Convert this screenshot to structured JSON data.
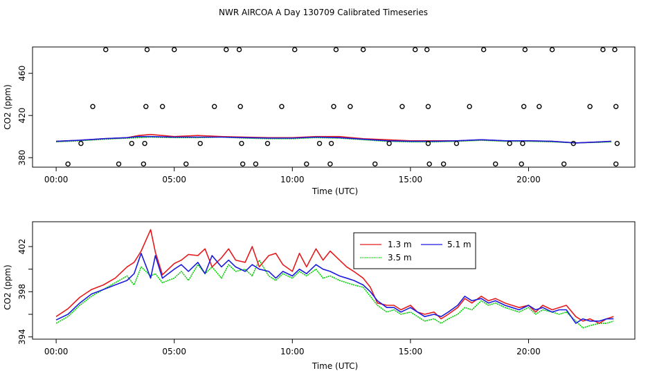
{
  "figure": {
    "title": "NWR AIRCOA A  Day 130709  Calibrated Timeseries"
  },
  "colors": {
    "series_1_3m": "#e41a1c",
    "series_3_5m": "#00cc00",
    "series_5_1m": "#1a1adf",
    "marker": "#000000"
  },
  "chart_data": [
    {
      "type": "line",
      "title": "",
      "xlabel": "Time (UTC)",
      "ylabel": "CO2 (ppm)",
      "xlim": [
        -1.0,
        24.5
      ],
      "ylim": [
        371,
        485
      ],
      "x_ticks": [
        0,
        5,
        10,
        15,
        20
      ],
      "x_tick_labels": [
        "00:00",
        "05:00",
        "10:00",
        "15:00",
        "20:00"
      ],
      "y_ticks": [
        380,
        420,
        460
      ],
      "y_tick_labels": [
        "380",
        "420",
        "460"
      ],
      "series": [
        {
          "name": "1.3 m",
          "color_key": "series_1_3m",
          "x": [
            0,
            1,
            2,
            3,
            3.5,
            4,
            5,
            6,
            7,
            8,
            9,
            10,
            11,
            12,
            13,
            14,
            15,
            16,
            17,
            18,
            19,
            20,
            21,
            22,
            23,
            23.5
          ],
          "values": [
            395.5,
            396.5,
            398,
            399,
            401,
            402,
            400,
            401,
            400,
            399.5,
            399,
            399,
            400,
            400,
            398,
            397,
            396,
            396,
            396,
            397,
            396,
            396,
            395.5,
            394,
            395,
            395.5
          ]
        },
        {
          "name": "3.5 m",
          "color_key": "series_3_5m",
          "x": [
            0,
            1,
            2,
            3,
            3.5,
            4,
            5,
            6,
            7,
            8,
            9,
            10,
            11,
            12,
            13,
            14,
            15,
            16,
            17,
            18,
            19,
            20,
            21,
            22,
            23,
            23.5
          ],
          "values": [
            395,
            396,
            397.5,
            398.5,
            399,
            399.5,
            399,
            399,
            399.5,
            398.5,
            398,
            398,
            399,
            398.5,
            397,
            395.5,
            395,
            395,
            395.5,
            396.5,
            395.5,
            395.5,
            395,
            394,
            394.5,
            395
          ]
        },
        {
          "name": "5.1 m",
          "color_key": "series_5_1m",
          "x": [
            0,
            1,
            2,
            3,
            3.5,
            4,
            5,
            6,
            7,
            8,
            9,
            10,
            11,
            12,
            13,
            14,
            15,
            16,
            17,
            18,
            19,
            20,
            21,
            22,
            23,
            23.5
          ],
          "values": [
            395.5,
            396.5,
            398,
            399,
            400,
            400,
            399.5,
            399.5,
            399.5,
            399,
            398.5,
            398.5,
            399.5,
            399,
            397.5,
            396,
            395.5,
            395.5,
            396,
            397,
            396,
            396,
            395.5,
            394,
            395,
            395.5
          ]
        }
      ],
      "markers": [
        {
          "x": 0.5,
          "y": 374
        },
        {
          "x": 2.65,
          "y": 374
        },
        {
          "x": 3.7,
          "y": 374
        },
        {
          "x": 5.5,
          "y": 374
        },
        {
          "x": 7.9,
          "y": 374
        },
        {
          "x": 8.45,
          "y": 374
        },
        {
          "x": 10.6,
          "y": 374
        },
        {
          "x": 11.6,
          "y": 374
        },
        {
          "x": 13.5,
          "y": 374
        },
        {
          "x": 15.8,
          "y": 374
        },
        {
          "x": 16.4,
          "y": 374
        },
        {
          "x": 18.6,
          "y": 374
        },
        {
          "x": 19.7,
          "y": 374
        },
        {
          "x": 21.5,
          "y": 374
        },
        {
          "x": 23.7,
          "y": 374
        },
        {
          "x": 1.05,
          "y": 393.5
        },
        {
          "x": 3.2,
          "y": 393.5
        },
        {
          "x": 3.75,
          "y": 393.5
        },
        {
          "x": 6.1,
          "y": 393.5
        },
        {
          "x": 7.85,
          "y": 393.5
        },
        {
          "x": 8.95,
          "y": 393.5
        },
        {
          "x": 11.15,
          "y": 393.5
        },
        {
          "x": 11.65,
          "y": 393.5
        },
        {
          "x": 14.1,
          "y": 393.5
        },
        {
          "x": 15.75,
          "y": 393.5
        },
        {
          "x": 16.95,
          "y": 393.5
        },
        {
          "x": 19.2,
          "y": 393.5
        },
        {
          "x": 19.75,
          "y": 393.5
        },
        {
          "x": 21.9,
          "y": 393.5
        },
        {
          "x": 23.75,
          "y": 393.5
        },
        {
          "x": 1.55,
          "y": 428.5
        },
        {
          "x": 3.8,
          "y": 428.5
        },
        {
          "x": 4.5,
          "y": 428.5
        },
        {
          "x": 6.7,
          "y": 428.5
        },
        {
          "x": 7.8,
          "y": 428.5
        },
        {
          "x": 9.55,
          "y": 428.5
        },
        {
          "x": 11.75,
          "y": 428.5
        },
        {
          "x": 12.45,
          "y": 428.5
        },
        {
          "x": 14.65,
          "y": 428.5
        },
        {
          "x": 15.75,
          "y": 428.5
        },
        {
          "x": 17.5,
          "y": 428.5
        },
        {
          "x": 19.8,
          "y": 428.5
        },
        {
          "x": 20.45,
          "y": 428.5
        },
        {
          "x": 22.6,
          "y": 428.5
        },
        {
          "x": 23.7,
          "y": 428.5
        },
        {
          "x": 2.1,
          "y": 482.5
        },
        {
          "x": 3.85,
          "y": 482.5
        },
        {
          "x": 5.0,
          "y": 482.5
        },
        {
          "x": 7.2,
          "y": 482.5
        },
        {
          "x": 7.75,
          "y": 482.5
        },
        {
          "x": 10.1,
          "y": 482.5
        },
        {
          "x": 11.85,
          "y": 482.5
        },
        {
          "x": 13.0,
          "y": 482.5
        },
        {
          "x": 15.2,
          "y": 482.5
        },
        {
          "x": 15.7,
          "y": 482.5
        },
        {
          "x": 18.1,
          "y": 482.5
        },
        {
          "x": 19.85,
          "y": 482.5
        },
        {
          "x": 21.0,
          "y": 482.5
        },
        {
          "x": 23.15,
          "y": 482.5
        },
        {
          "x": 23.65,
          "y": 482.5
        }
      ]
    },
    {
      "type": "line",
      "title": "",
      "xlabel": "Time (UTC)",
      "ylabel": "CO2 (ppm)",
      "xlim": [
        -1.0,
        24.5
      ],
      "ylim": [
        393.8,
        404.2
      ],
      "x_ticks": [
        0,
        5,
        10,
        15,
        20
      ],
      "x_tick_labels": [
        "00:00",
        "05:00",
        "10:00",
        "15:00",
        "20:00"
      ],
      "y_ticks": [
        394,
        396,
        398,
        400,
        402
      ],
      "y_tick_labels": [
        "394",
        "",
        "398",
        "",
        "402"
      ],
      "legend": {
        "position": "top-center",
        "ncol": 2,
        "order": [
          "1.3 m",
          "5.1 m",
          "3.5 m"
        ]
      },
      "series": [
        {
          "name": "1.3 m",
          "color_key": "series_1_3m",
          "x": [
            0,
            0.5,
            1,
            1.5,
            2,
            2.5,
            3,
            3.3,
            3.6,
            4,
            4.2,
            4.5,
            5,
            5.3,
            5.6,
            6,
            6.3,
            6.6,
            7,
            7.3,
            7.6,
            8,
            8.3,
            8.6,
            9,
            9.3,
            9.6,
            10,
            10.3,
            10.6,
            11,
            11.3,
            11.6,
            12,
            12.3,
            12.6,
            13,
            13.3,
            13.6,
            14,
            14.3,
            14.6,
            15,
            15.3,
            15.6,
            16,
            16.3,
            16.6,
            17,
            17.3,
            17.6,
            18,
            18.3,
            18.6,
            19,
            19.3,
            19.6,
            20,
            20.3,
            20.6,
            21,
            21.3,
            21.6,
            22,
            22.3,
            22.6,
            23,
            23.3,
            23.6
          ],
          "values": [
            395.8,
            396.5,
            397.5,
            398.2,
            398.6,
            399.2,
            400.2,
            400.6,
            401.6,
            403.5,
            401.5,
            399.5,
            400.5,
            400.8,
            401.3,
            401.2,
            401.8,
            400.2,
            401.0,
            401.8,
            400.8,
            400.6,
            402.0,
            400.2,
            401.2,
            401.4,
            400.4,
            399.8,
            401.4,
            400.2,
            401.8,
            400.8,
            401.6,
            400.8,
            400.2,
            399.8,
            399.2,
            398.4,
            397.0,
            396.8,
            396.8,
            396.4,
            396.8,
            396.2,
            396.0,
            396.2,
            395.6,
            396.0,
            396.6,
            397.4,
            397.0,
            397.6,
            397.2,
            397.4,
            397.0,
            396.8,
            396.6,
            396.8,
            396.2,
            396.8,
            396.4,
            396.6,
            396.8,
            395.8,
            395.4,
            395.6,
            395.2,
            395.6,
            395.8
          ]
        },
        {
          "name": "3.5 m",
          "color_key": "series_3_5m",
          "x": [
            0,
            0.5,
            1,
            1.5,
            2,
            2.5,
            3,
            3.3,
            3.6,
            4,
            4.2,
            4.5,
            5,
            5.3,
            5.6,
            6,
            6.3,
            6.6,
            7,
            7.3,
            7.6,
            8,
            8.3,
            8.6,
            9,
            9.3,
            9.6,
            10,
            10.3,
            10.6,
            11,
            11.3,
            11.6,
            12,
            12.3,
            12.6,
            13,
            13.3,
            13.6,
            14,
            14.3,
            14.6,
            15,
            15.3,
            15.6,
            16,
            16.3,
            16.6,
            17,
            17.3,
            17.6,
            18,
            18.3,
            18.6,
            19,
            19.3,
            19.6,
            20,
            20.3,
            20.6,
            21,
            21.3,
            21.6,
            22,
            22.3,
            22.6,
            23,
            23.3,
            23.6
          ],
          "values": [
            395.2,
            395.8,
            396.8,
            397.6,
            398.2,
            398.8,
            399.4,
            398.6,
            400.2,
            399.4,
            399.6,
            398.8,
            399.2,
            399.8,
            399.0,
            400.4,
            399.6,
            400.2,
            399.2,
            400.4,
            399.8,
            400.0,
            399.4,
            400.8,
            399.4,
            399.0,
            399.6,
            399.2,
            399.8,
            399.4,
            400.0,
            399.2,
            399.4,
            399.0,
            398.8,
            398.6,
            398.4,
            397.6,
            396.8,
            396.2,
            396.4,
            396.0,
            396.2,
            395.8,
            395.4,
            395.6,
            395.2,
            395.6,
            396.0,
            396.6,
            396.4,
            397.2,
            396.8,
            397.0,
            396.6,
            396.4,
            396.2,
            396.6,
            396.0,
            396.4,
            396.2,
            396.0,
            396.2,
            395.4,
            394.8,
            395.0,
            395.2,
            395.2,
            395.4
          ]
        },
        {
          "name": "5.1 m",
          "color_key": "series_5_1m",
          "x": [
            0,
            0.5,
            1,
            1.5,
            2,
            2.5,
            3,
            3.3,
            3.6,
            4,
            4.2,
            4.5,
            5,
            5.3,
            5.6,
            6,
            6.3,
            6.6,
            7,
            7.3,
            7.6,
            8,
            8.3,
            8.6,
            9,
            9.3,
            9.6,
            10,
            10.3,
            10.6,
            11,
            11.3,
            11.6,
            12,
            12.3,
            12.6,
            13,
            13.3,
            13.6,
            14,
            14.3,
            14.6,
            15,
            15.3,
            15.6,
            16,
            16.3,
            16.6,
            17,
            17.3,
            17.6,
            18,
            18.3,
            18.6,
            19,
            19.3,
            19.6,
            20,
            20.3,
            20.6,
            21,
            21.3,
            21.6,
            22,
            22.3,
            22.6,
            23,
            23.3,
            23.6
          ],
          "values": [
            395.5,
            396.0,
            397.0,
            397.8,
            398.2,
            398.6,
            399.0,
            399.6,
            401.4,
            399.2,
            401.2,
            399.2,
            400.0,
            400.4,
            399.8,
            400.6,
            399.6,
            401.2,
            400.2,
            400.8,
            400.2,
            399.8,
            400.4,
            400.0,
            399.8,
            399.2,
            399.8,
            399.4,
            400.0,
            399.6,
            400.4,
            400.0,
            399.8,
            399.4,
            399.2,
            399.0,
            398.6,
            398.0,
            397.2,
            396.6,
            396.6,
            396.2,
            396.6,
            396.2,
            395.8,
            396.0,
            395.8,
            396.2,
            396.8,
            397.6,
            397.2,
            397.4,
            397.0,
            397.2,
            396.8,
            396.6,
            396.4,
            396.8,
            396.4,
            396.6,
            396.2,
            396.4,
            396.4,
            395.2,
            395.6,
            395.4,
            395.4,
            395.6,
            395.6
          ]
        }
      ]
    }
  ]
}
